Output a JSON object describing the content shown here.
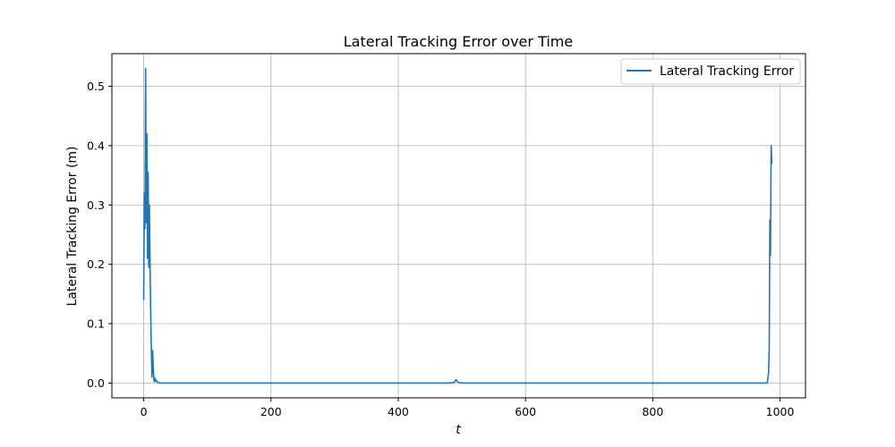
{
  "chart_data": {
    "type": "line",
    "title": "Lateral Tracking Error over Time",
    "xlabel": "t",
    "ylabel": "Lateral Tracking Error (m)",
    "xlim": [
      -50,
      1040
    ],
    "ylim": [
      -0.025,
      0.555
    ],
    "xticks": [
      0,
      200,
      400,
      600,
      800,
      1000
    ],
    "yticks": [
      0.0,
      0.1,
      0.2,
      0.3,
      0.4,
      0.5
    ],
    "xtick_labels": [
      "0",
      "200",
      "400",
      "600",
      "800",
      "1000"
    ],
    "ytick_labels": [
      "0.0",
      "0.1",
      "0.2",
      "0.3",
      "0.4",
      "0.5"
    ],
    "grid": true,
    "legend_position": "top-right",
    "series": [
      {
        "name": "Lateral Tracking Error",
        "color": "#1f77b4",
        "x": [
          0,
          1,
          2,
          3,
          4,
          5,
          6,
          7,
          8,
          9,
          10,
          11,
          12,
          13,
          14,
          15,
          16,
          17,
          18,
          19,
          20,
          22,
          25,
          30,
          40,
          100,
          200,
          300,
          400,
          480,
          488,
          491,
          494,
          500,
          600,
          700,
          800,
          900,
          970,
          980,
          982,
          983,
          984,
          985,
          986,
          987
        ],
        "y": [
          0.14,
          0.32,
          0.26,
          0.53,
          0.27,
          0.42,
          0.21,
          0.355,
          0.195,
          0.3,
          0.2,
          0.12,
          0.06,
          0.01,
          0.055,
          0.03,
          0.005,
          0.002,
          0.008,
          0.003,
          0.004,
          0.001,
          0.0,
          0.0,
          0.0,
          0.0,
          0.0,
          0.0,
          0.0,
          0.0,
          0.001,
          0.006,
          0.001,
          0.0,
          0.0,
          0.0,
          0.0,
          0.0,
          0.0,
          0.0,
          0.018,
          0.06,
          0.275,
          0.215,
          0.4,
          0.37
        ]
      }
    ]
  }
}
